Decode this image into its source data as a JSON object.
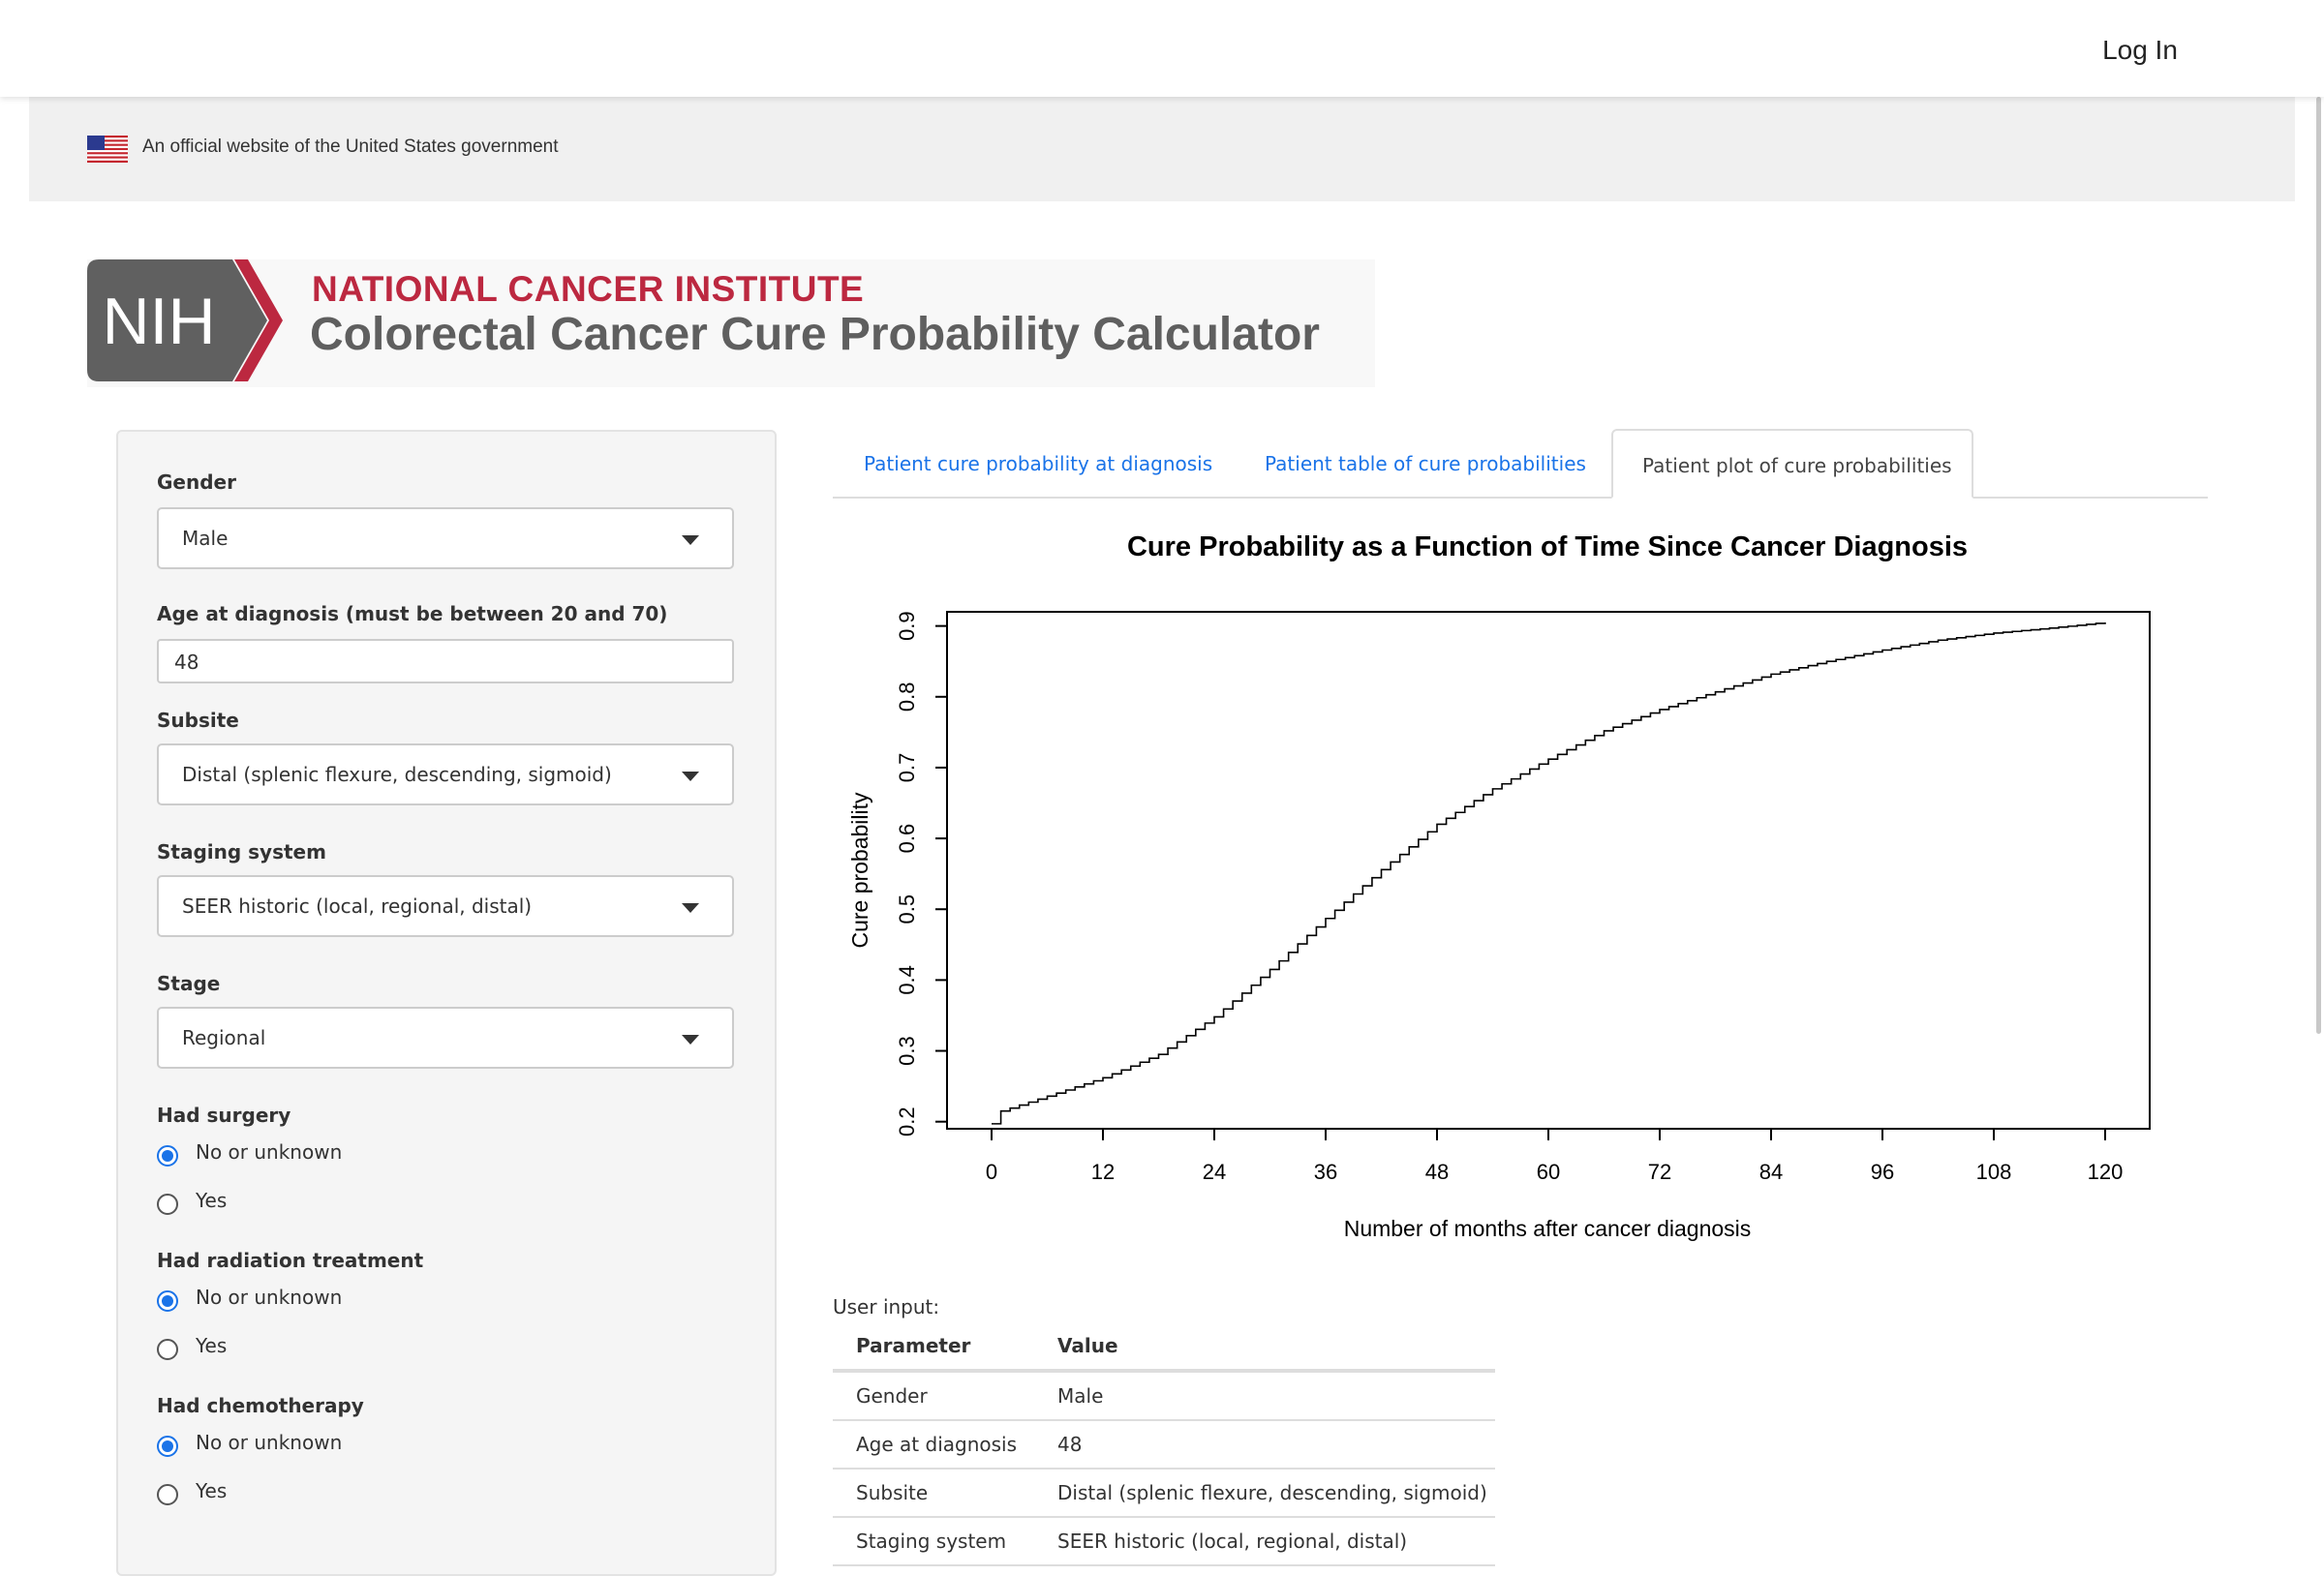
{
  "topbar": {
    "login_label": "Log In"
  },
  "gov_banner": {
    "text": "An official website of the United States government",
    "flag_icon": "us-flag-icon"
  },
  "header": {
    "logo_text": "NIH",
    "institute": "NATIONAL CANCER INSTITUTE",
    "title": "Colorectal Cancer Cure Probability Calculator",
    "colors": {
      "institute_red": "#bc2840",
      "title_gray": "#5f5f5f",
      "logo_gray": "#606060"
    }
  },
  "form": {
    "gender": {
      "label": "Gender",
      "value": "Male"
    },
    "age": {
      "label": "Age at diagnosis (must be between 20 and 70)",
      "value": "48"
    },
    "subsite": {
      "label": "Subsite",
      "value": "Distal (splenic flexure, descending, sigmoid)"
    },
    "staging": {
      "label": "Staging system",
      "value": "SEER historic (local, regional, distal)"
    },
    "stage": {
      "label": "Stage",
      "value": "Regional"
    },
    "surgery": {
      "label": "Had surgery",
      "options": [
        "No or unknown",
        "Yes"
      ],
      "selected": "No or unknown"
    },
    "radiation": {
      "label": "Had radiation treatment",
      "options": [
        "No or unknown",
        "Yes"
      ],
      "selected": "No or unknown"
    },
    "chemo": {
      "label": "Had chemotherapy",
      "options": [
        "No or unknown",
        "Yes"
      ],
      "selected": "No or unknown"
    }
  },
  "tabs": [
    {
      "label": "Patient cure probability at diagnosis",
      "active": false
    },
    {
      "label": "Patient table of cure probabilities",
      "active": false
    },
    {
      "label": "Patient plot of cure probabilities",
      "active": true
    }
  ],
  "chart_data": {
    "type": "line",
    "step": true,
    "title": "Cure Probability as a Function of Time Since Cancer Diagnosis",
    "xlabel": "Number of months after cancer diagnosis",
    "ylabel": "Cure probability",
    "xlim": [
      0,
      120
    ],
    "ylim": [
      0.19,
      0.92
    ],
    "xticks": [
      0,
      12,
      24,
      36,
      48,
      60,
      72,
      84,
      96,
      108,
      120
    ],
    "yticks": [
      0.2,
      0.3,
      0.4,
      0.5,
      0.6,
      0.7,
      0.8,
      0.9
    ],
    "grid": false,
    "series": [
      {
        "x": [
          0,
          1,
          6,
          12,
          18,
          24,
          30,
          36,
          42,
          48,
          54,
          60,
          66,
          72,
          78,
          84,
          90,
          96,
          102,
          108,
          114,
          120
        ],
        "y": [
          0.197,
          0.215,
          0.236,
          0.262,
          0.295,
          0.348,
          0.415,
          0.487,
          0.556,
          0.62,
          0.67,
          0.712,
          0.752,
          0.782,
          0.807,
          0.832,
          0.85,
          0.866,
          0.88,
          0.89,
          0.897,
          0.905
        ]
      }
    ]
  },
  "user_input": {
    "label": "User input:",
    "headers": [
      "Parameter",
      "Value"
    ],
    "rows": [
      [
        "Gender",
        "Male"
      ],
      [
        "Age at diagnosis",
        "48"
      ],
      [
        "Subsite",
        "Distal (splenic flexure, descending, sigmoid)"
      ],
      [
        "Staging system",
        "SEER historic (local, regional, distal)"
      ]
    ]
  }
}
